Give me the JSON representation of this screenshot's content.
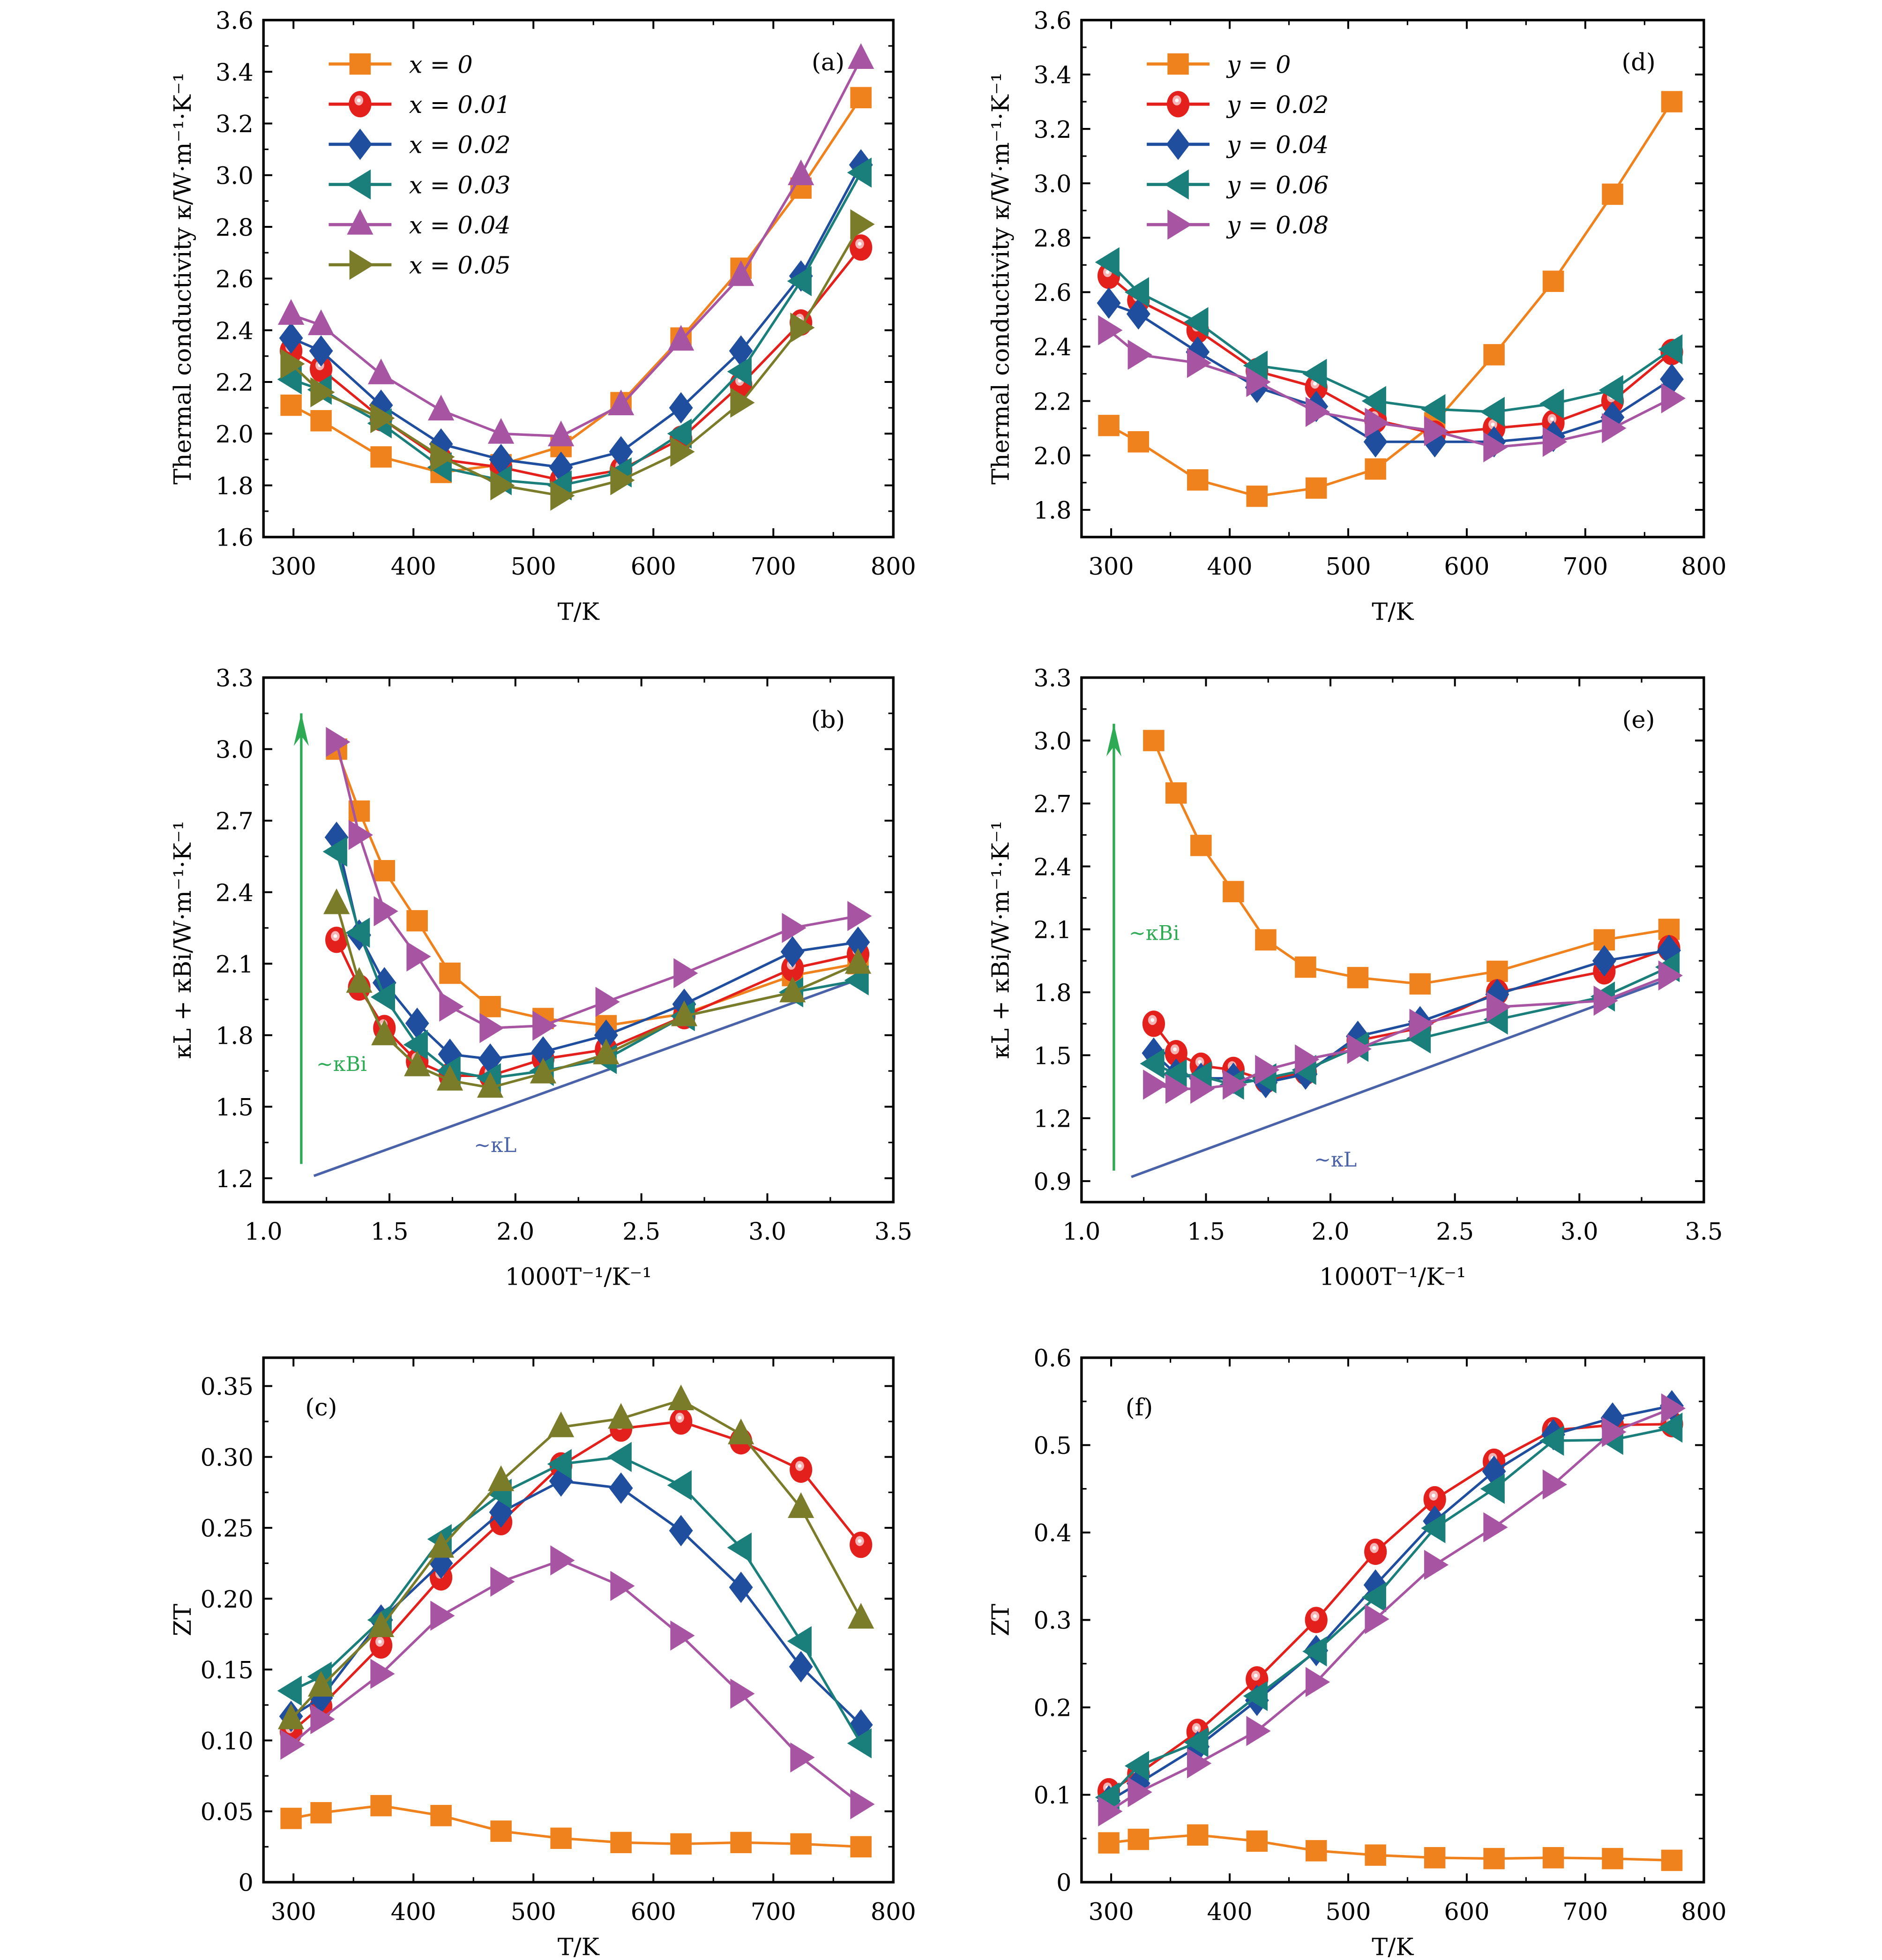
{
  "chart_data": [
    {
      "id": "a",
      "type": "line",
      "panel_label": "(a)",
      "xlabel": "T/K",
      "ylabel": "Thermal conductivity κ/W·m⁻¹·K⁻¹",
      "xlim": [
        275,
        800
      ],
      "ylim": [
        1.6,
        3.6
      ],
      "xticks": [
        300,
        400,
        500,
        600,
        700,
        800
      ],
      "xtick_labels": [
        "300",
        "400",
        "500",
        "600",
        "700",
        "800"
      ],
      "yticks": [
        1.6,
        1.8,
        2.0,
        2.2,
        2.4,
        2.6,
        2.8,
        3.0,
        3.2,
        3.4,
        3.6
      ],
      "ytick_labels": [
        "1.6",
        "1.8",
        "2.0",
        "2.2",
        "2.4",
        "2.6",
        "2.8",
        "3.0",
        "3.2",
        "3.4",
        "3.6"
      ],
      "legend": "top-left",
      "x": [
        298,
        323,
        373,
        423,
        473,
        523,
        573,
        623,
        673,
        723,
        773
      ],
      "series": [
        {
          "name": "x = 0",
          "marker": "square",
          "color": "#f0821e",
          "values": [
            2.11,
            2.05,
            1.91,
            1.85,
            1.88,
            1.95,
            2.12,
            2.37,
            2.64,
            2.95,
            3.3
          ]
        },
        {
          "name": "x = 0.01",
          "marker": "circle",
          "color": "#e3201b",
          "values": [
            2.32,
            2.25,
            2.06,
            1.9,
            1.87,
            1.82,
            1.86,
            1.98,
            2.19,
            2.43,
            2.72
          ]
        },
        {
          "name": "x = 0.02",
          "marker": "diamond",
          "color": "#1f4e9f",
          "values": [
            2.37,
            2.32,
            2.11,
            1.96,
            1.9,
            1.87,
            1.93,
            2.1,
            2.32,
            2.61,
            3.04
          ]
        },
        {
          "name": "x = 0.03",
          "marker": "triangle-left",
          "color": "#1a7f7a",
          "values": [
            2.21,
            2.17,
            2.04,
            1.87,
            1.82,
            1.8,
            1.85,
            2.0,
            2.24,
            2.59,
            3.01
          ]
        },
        {
          "name": "x = 0.04",
          "marker": "triangle-up",
          "color": "#a755a3",
          "values": [
            2.46,
            2.42,
            2.23,
            2.09,
            2.0,
            1.99,
            2.11,
            2.36,
            2.61,
            3.0,
            3.45
          ]
        },
        {
          "name": "x = 0.05",
          "marker": "triangle-right",
          "color": "#7a7c2a",
          "values": [
            2.27,
            2.16,
            2.06,
            1.91,
            1.8,
            1.76,
            1.82,
            1.93,
            2.12,
            2.41,
            2.81
          ]
        }
      ]
    },
    {
      "id": "d",
      "type": "line",
      "panel_label": "(d)",
      "xlabel": "T/K",
      "ylabel": "Thermal conductivity κ/W·m⁻¹·K⁻¹",
      "xlim": [
        275,
        800
      ],
      "ylim": [
        1.7,
        3.6
      ],
      "xticks": [
        300,
        400,
        500,
        600,
        700,
        800
      ],
      "xtick_labels": [
        "300",
        "400",
        "500",
        "600",
        "700",
        "800"
      ],
      "yticks": [
        1.8,
        2.0,
        2.2,
        2.4,
        2.6,
        2.8,
        3.0,
        3.2,
        3.4,
        3.6
      ],
      "ytick_labels": [
        "1.8",
        "2.0",
        "2.2",
        "2.4",
        "2.6",
        "2.8",
        "3.0",
        "3.2",
        "3.4",
        "3.6"
      ],
      "legend": "top-left",
      "x": [
        298,
        323,
        373,
        423,
        473,
        523,
        573,
        623,
        673,
        723,
        773
      ],
      "series": [
        {
          "name": "y = 0",
          "marker": "square",
          "color": "#f0821e",
          "values": [
            2.11,
            2.05,
            1.91,
            1.85,
            1.88,
            1.95,
            2.12,
            2.37,
            2.64,
            2.96,
            3.3
          ]
        },
        {
          "name": "y = 0.02",
          "marker": "circle",
          "color": "#e3201b",
          "values": [
            2.66,
            2.57,
            2.46,
            2.31,
            2.25,
            2.13,
            2.08,
            2.1,
            2.12,
            2.2,
            2.38
          ]
        },
        {
          "name": "y = 0.04",
          "marker": "diamond",
          "color": "#1f4e9f",
          "values": [
            2.56,
            2.52,
            2.38,
            2.25,
            2.18,
            2.05,
            2.05,
            2.05,
            2.07,
            2.14,
            2.28
          ]
        },
        {
          "name": "y = 0.06",
          "marker": "triangle-left",
          "color": "#1a7f7a",
          "values": [
            2.71,
            2.6,
            2.49,
            2.33,
            2.3,
            2.2,
            2.17,
            2.16,
            2.19,
            2.24,
            2.39
          ]
        },
        {
          "name": "y = 0.08",
          "marker": "triangle-right",
          "color": "#a755a3",
          "values": [
            2.46,
            2.37,
            2.34,
            2.27,
            2.16,
            2.12,
            2.09,
            2.03,
            2.05,
            2.1,
            2.21
          ]
        }
      ]
    },
    {
      "id": "b",
      "type": "line",
      "panel_label": "(b)",
      "xlabel": "1000T⁻¹/K⁻¹",
      "ylabel": "κL + κBi/W·m⁻¹·K⁻¹",
      "xlim": [
        1.0,
        3.5
      ],
      "ylim": [
        1.1,
        3.3
      ],
      "xticks": [
        1.0,
        1.5,
        2.0,
        2.5,
        3.0,
        3.5
      ],
      "xtick_labels": [
        "1.0",
        "1.5",
        "2.0",
        "2.5",
        "3.0",
        "3.5"
      ],
      "yticks": [
        1.2,
        1.5,
        1.8,
        2.1,
        2.4,
        2.7,
        3.0,
        3.3
      ],
      "ytick_labels": [
        "1.2",
        "1.5",
        "1.8",
        "2.1",
        "2.4",
        "2.7",
        "3.0",
        "3.3"
      ],
      "legend": "none",
      "annotations": [
        {
          "text": "~κBi",
          "kind": "arrow",
          "color": "#2eaa55",
          "from": [
            1.15,
            1.26
          ],
          "to": [
            1.15,
            3.15
          ],
          "label_at": [
            1.15,
            1.65
          ]
        },
        {
          "text": "~κL",
          "kind": "line",
          "color": "#4a63a8",
          "from": [
            1.2,
            1.21
          ],
          "to": [
            3.35,
            2.03
          ],
          "label_at": [
            1.92,
            1.31
          ]
        }
      ],
      "x": [
        1.29,
        1.38,
        1.48,
        1.61,
        1.74,
        1.9,
        2.11,
        2.36,
        2.67,
        3.1,
        3.36
      ],
      "series": [
        {
          "name": "x = 0",
          "marker": "square",
          "color": "#f0821e",
          "values": [
            3.0,
            2.74,
            2.49,
            2.28,
            2.06,
            1.92,
            1.87,
            1.84,
            1.89,
            2.05,
            2.1
          ]
        },
        {
          "name": "x = 0.01",
          "marker": "circle",
          "color": "#e3201b",
          "values": [
            2.2,
            2.0,
            1.83,
            1.69,
            1.63,
            1.63,
            1.7,
            1.74,
            1.88,
            2.08,
            2.14
          ]
        },
        {
          "name": "x = 0.02",
          "marker": "diamond",
          "color": "#1f4e9f",
          "values": [
            2.63,
            2.22,
            2.02,
            1.85,
            1.72,
            1.7,
            1.73,
            1.8,
            1.93,
            2.15,
            2.19
          ]
        },
        {
          "name": "x = 0.03",
          "marker": "triangle-left",
          "color": "#1a7f7a",
          "values": [
            2.57,
            2.23,
            1.96,
            1.76,
            1.65,
            1.62,
            1.65,
            1.7,
            1.88,
            1.98,
            2.03
          ]
        },
        {
          "name": "x = 0.04",
          "marker": "triangle-right",
          "color": "#a755a3",
          "values": [
            3.03,
            2.64,
            2.32,
            2.13,
            1.92,
            1.83,
            1.84,
            1.94,
            2.06,
            2.25,
            2.3
          ]
        },
        {
          "name": "x = 0.05",
          "marker": "triangle-up",
          "color": "#7a7c2a",
          "values": [
            2.35,
            2.02,
            1.8,
            1.67,
            1.61,
            1.58,
            1.64,
            1.72,
            1.88,
            1.98,
            2.1
          ]
        }
      ]
    },
    {
      "id": "e",
      "type": "line",
      "panel_label": "(e)",
      "xlabel": "1000T⁻¹/K⁻¹",
      "ylabel": "κL + κBi/W·m⁻¹·K⁻¹",
      "xlim": [
        1.0,
        3.5
      ],
      "ylim": [
        0.8,
        3.3
      ],
      "xticks": [
        1.0,
        1.5,
        2.0,
        2.5,
        3.0,
        3.5
      ],
      "xtick_labels": [
        "1.0",
        "1.5",
        "2.0",
        "2.5",
        "3.0",
        "3.5"
      ],
      "yticks": [
        0.9,
        1.2,
        1.5,
        1.8,
        2.1,
        2.4,
        2.7,
        3.0,
        3.3
      ],
      "ytick_labels": [
        "0.9",
        "1.2",
        "1.5",
        "1.8",
        "2.1",
        "2.4",
        "2.7",
        "3.0",
        "3.3"
      ],
      "legend": "none",
      "annotations": [
        {
          "text": "~κBi",
          "kind": "arrow",
          "color": "#2eaa55",
          "from": [
            1.13,
            0.95
          ],
          "to": [
            1.13,
            3.08
          ],
          "label_at": [
            1.13,
            2.05
          ]
        },
        {
          "text": "~κL",
          "kind": "line",
          "color": "#4a63a8",
          "from": [
            1.2,
            0.92
          ],
          "to": [
            3.35,
            1.86
          ],
          "label_at": [
            2.02,
            0.97
          ]
        }
      ],
      "x": [
        1.29,
        1.38,
        1.48,
        1.61,
        1.74,
        1.9,
        2.11,
        2.36,
        2.67,
        3.1,
        3.36
      ],
      "series": [
        {
          "name": "y = 0",
          "marker": "square",
          "color": "#f0821e",
          "values": [
            3.0,
            2.75,
            2.5,
            2.28,
            2.05,
            1.92,
            1.87,
            1.84,
            1.9,
            2.05,
            2.1
          ]
        },
        {
          "name": "y = 0.02",
          "marker": "circle",
          "color": "#e3201b",
          "values": [
            1.65,
            1.51,
            1.45,
            1.43,
            1.38,
            1.42,
            1.57,
            1.63,
            1.8,
            1.9,
            2.01
          ]
        },
        {
          "name": "y = 0.04",
          "marker": "diamond",
          "color": "#1f4e9f",
          "values": [
            1.51,
            1.41,
            1.39,
            1.39,
            1.37,
            1.41,
            1.59,
            1.66,
            1.79,
            1.95,
            2.0
          ]
        },
        {
          "name": "y = 0.06",
          "marker": "triangle-left",
          "color": "#1a7f7a",
          "values": [
            1.46,
            1.41,
            1.4,
            1.36,
            1.39,
            1.43,
            1.54,
            1.58,
            1.67,
            1.78,
            1.92
          ]
        },
        {
          "name": "y = 0.08",
          "marker": "triangle-right",
          "color": "#a755a3",
          "values": [
            1.36,
            1.34,
            1.34,
            1.36,
            1.43,
            1.48,
            1.53,
            1.65,
            1.73,
            1.76,
            1.88
          ]
        }
      ]
    },
    {
      "id": "c",
      "type": "line",
      "panel_label": "(c)",
      "xlabel": "T/K",
      "ylabel": "ZT",
      "xlim": [
        275,
        800
      ],
      "ylim": [
        0,
        0.37
      ],
      "xticks": [
        300,
        400,
        500,
        600,
        700,
        800
      ],
      "xtick_labels": [
        "300",
        "400",
        "500",
        "600",
        "700",
        "800"
      ],
      "yticks": [
        0,
        0.05,
        0.1,
        0.15,
        0.2,
        0.25,
        0.3,
        0.35
      ],
      "ytick_labels": [
        "0",
        "0.05",
        "0.10",
        "0.15",
        "0.20",
        "0.25",
        "0.30",
        "0.35"
      ],
      "legend": "none",
      "x": [
        298,
        323,
        373,
        423,
        473,
        523,
        573,
        623,
        673,
        723,
        773
      ],
      "series": [
        {
          "name": "x = 0",
          "marker": "square",
          "color": "#f0821e",
          "values": [
            0.045,
            0.049,
            0.054,
            0.047,
            0.036,
            0.031,
            0.028,
            0.027,
            0.028,
            0.027,
            0.025
          ]
        },
        {
          "name": "x = 0.01",
          "marker": "circle",
          "color": "#e3201b",
          "values": [
            0.106,
            0.124,
            0.167,
            0.215,
            0.254,
            0.294,
            0.32,
            0.325,
            0.311,
            0.291,
            0.238
          ]
        },
        {
          "name": "x = 0.02",
          "marker": "diamond",
          "color": "#1f4e9f",
          "values": [
            0.117,
            0.13,
            0.185,
            0.225,
            0.261,
            0.283,
            0.278,
            0.248,
            0.208,
            0.152,
            0.111
          ]
        },
        {
          "name": "x = 0.03",
          "marker": "triangle-left",
          "color": "#1a7f7a",
          "values": [
            0.135,
            0.145,
            0.185,
            0.242,
            0.274,
            0.295,
            0.3,
            0.28,
            0.236,
            0.17,
            0.098
          ]
        },
        {
          "name": "x = 0.04",
          "marker": "triangle-right",
          "color": "#a755a3",
          "values": [
            0.097,
            0.115,
            0.147,
            0.188,
            0.212,
            0.227,
            0.209,
            0.174,
            0.133,
            0.088,
            0.055
          ]
        },
        {
          "name": "x = 0.05",
          "marker": "triangle-up",
          "color": "#7a7c2a",
          "values": [
            0.115,
            0.138,
            0.18,
            0.236,
            0.283,
            0.321,
            0.327,
            0.34,
            0.316,
            0.264,
            0.186
          ]
        }
      ]
    },
    {
      "id": "f",
      "type": "line",
      "panel_label": "(f)",
      "xlabel": "T/K",
      "ylabel": "ZT",
      "xlim": [
        275,
        800
      ],
      "ylim": [
        0,
        0.6
      ],
      "xticks": [
        300,
        400,
        500,
        600,
        700,
        800
      ],
      "xtick_labels": [
        "300",
        "400",
        "500",
        "600",
        "700",
        "800"
      ],
      "yticks": [
        0,
        0.1,
        0.2,
        0.3,
        0.4,
        0.5,
        0.6
      ],
      "ytick_labels": [
        "0",
        "0.1",
        "0.2",
        "0.3",
        "0.4",
        "0.5",
        "0.6"
      ],
      "legend": "none",
      "x": [
        298,
        323,
        373,
        423,
        473,
        523,
        573,
        623,
        673,
        723,
        773
      ],
      "series": [
        {
          "name": "y = 0",
          "marker": "square",
          "color": "#f0821e",
          "values": [
            0.045,
            0.049,
            0.054,
            0.047,
            0.036,
            0.031,
            0.028,
            0.027,
            0.028,
            0.027,
            0.025
          ]
        },
        {
          "name": "y = 0.02",
          "marker": "circle",
          "color": "#e3201b",
          "values": [
            0.104,
            0.124,
            0.172,
            0.232,
            0.3,
            0.378,
            0.438,
            0.481,
            0.517,
            0.523,
            0.524
          ]
        },
        {
          "name": "y = 0.04",
          "marker": "diamond",
          "color": "#1f4e9f",
          "values": [
            0.093,
            0.113,
            0.155,
            0.208,
            0.265,
            0.34,
            0.413,
            0.47,
            0.512,
            0.531,
            0.545
          ]
        },
        {
          "name": "y = 0.06",
          "marker": "triangle-left",
          "color": "#1a7f7a",
          "values": [
            0.097,
            0.133,
            0.16,
            0.213,
            0.264,
            0.326,
            0.405,
            0.45,
            0.505,
            0.506,
            0.52
          ]
        },
        {
          "name": "y = 0.08",
          "marker": "triangle-right",
          "color": "#a755a3",
          "values": [
            0.081,
            0.103,
            0.136,
            0.173,
            0.229,
            0.301,
            0.363,
            0.406,
            0.455,
            0.515,
            0.542
          ]
        }
      ]
    }
  ]
}
